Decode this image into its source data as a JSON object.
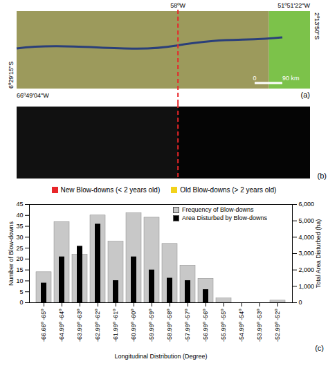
{
  "map_panels": {
    "a": {
      "label": "(a)",
      "coordinates": {
        "top_meridian": "58ºW",
        "top_right": "51º51'22\"W",
        "right": "2º13'50\"S",
        "left": "6º29'15\"S",
        "bottom_left": "66º49'04\"W"
      },
      "scale_bar": [
        "0",
        "90 km"
      ]
    },
    "b": {
      "label": "(b)"
    },
    "legend": [
      {
        "name": "New Blow-downs (< 2 years old)",
        "color": "#e8262a"
      },
      {
        "name": "Old Blow-downs (> 2 years old)",
        "color": "#f2d21b"
      }
    ]
  },
  "chart_data": {
    "type": "bar",
    "panel_label": "(c)",
    "x_label": "Longitudinal Distribution (Degree)",
    "y_label": "Number of Blow-downs",
    "y2_label": "Total Area Disturbed (ha)",
    "categories": [
      "-66.66º -65º",
      "-64.99º -64º",
      "-63.99º -63º",
      "-62.99º -62º",
      "-61.99º -61º",
      "-60.99º -60º",
      "-59.99º -59º",
      "-58.99º -58º",
      "-57.99º -57º",
      "-56.99º -56º",
      "-55.99º -55º",
      "-54.99º -54º",
      "-53.99º -53º",
      "-52.99º -52º"
    ],
    "series": [
      {
        "name": "Frequency of Blow-downs",
        "color": "#c8c8c8",
        "values": [
          14,
          37,
          22,
          40,
          28,
          41,
          39,
          27,
          17,
          11,
          2,
          0,
          0,
          1
        ]
      },
      {
        "name": "Area Disturbed by Blow-downs",
        "color": "#000000",
        "axis": "y2",
        "values": [
          1200,
          2800,
          3450,
          4800,
          1350,
          2800,
          2000,
          1500,
          1350,
          800,
          0,
          0,
          0,
          0
        ]
      }
    ],
    "ylim": [
      0,
      45
    ],
    "yticks": [
      0,
      5,
      10,
      15,
      20,
      25,
      30,
      35,
      40,
      45
    ],
    "y2lim": [
      0,
      6000
    ],
    "y2ticks": [
      0,
      1000,
      2000,
      3000,
      4000,
      5000,
      6000
    ],
    "legend": "top-right"
  }
}
